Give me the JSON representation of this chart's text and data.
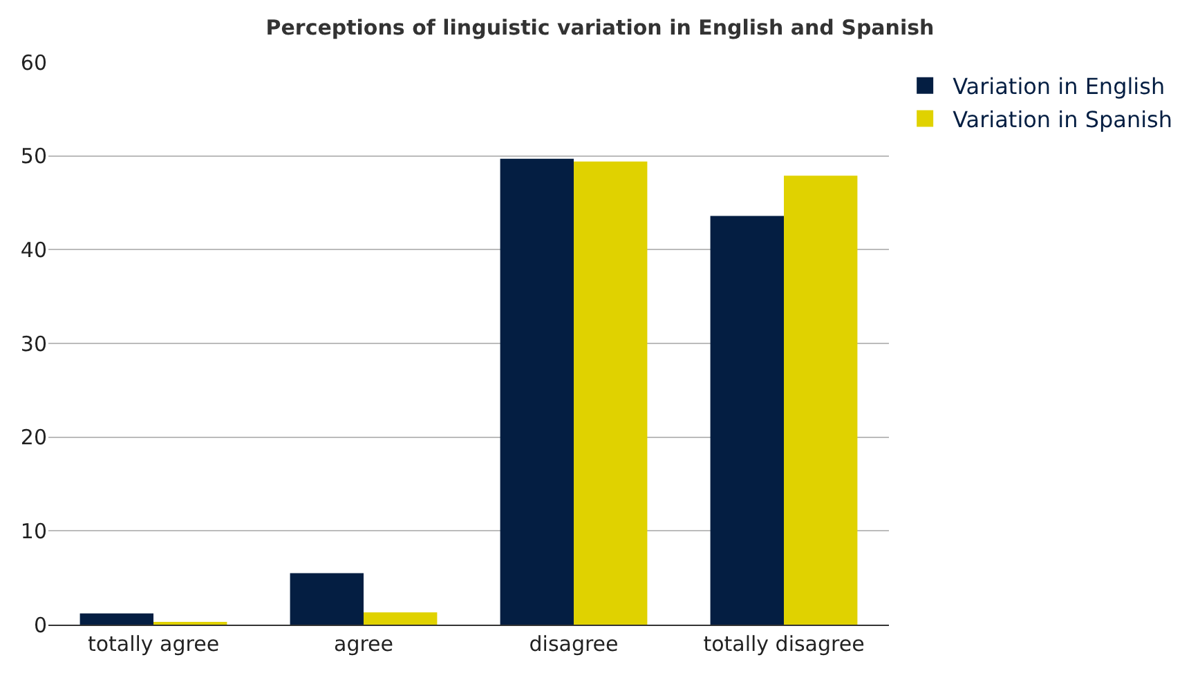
{
  "chart_data": {
    "type": "bar",
    "title": "Perceptions of linguistic variation in English and Spanish",
    "categories": [
      "totally agree",
      "agree",
      "disagree",
      "totally disagree"
    ],
    "series": [
      {
        "name": "Variation in English",
        "color": "#041e42",
        "values": [
          1.2,
          5.5,
          49.7,
          43.6
        ]
      },
      {
        "name": "Variation in Spanish",
        "color": "#e0d200",
        "values": [
          0.3,
          1.3,
          49.4,
          47.9
        ]
      }
    ],
    "ylim": [
      0,
      60
    ],
    "yticks": [
      0,
      10,
      20,
      30,
      40,
      50,
      60
    ],
    "grid": "y",
    "legend": "top right"
  }
}
